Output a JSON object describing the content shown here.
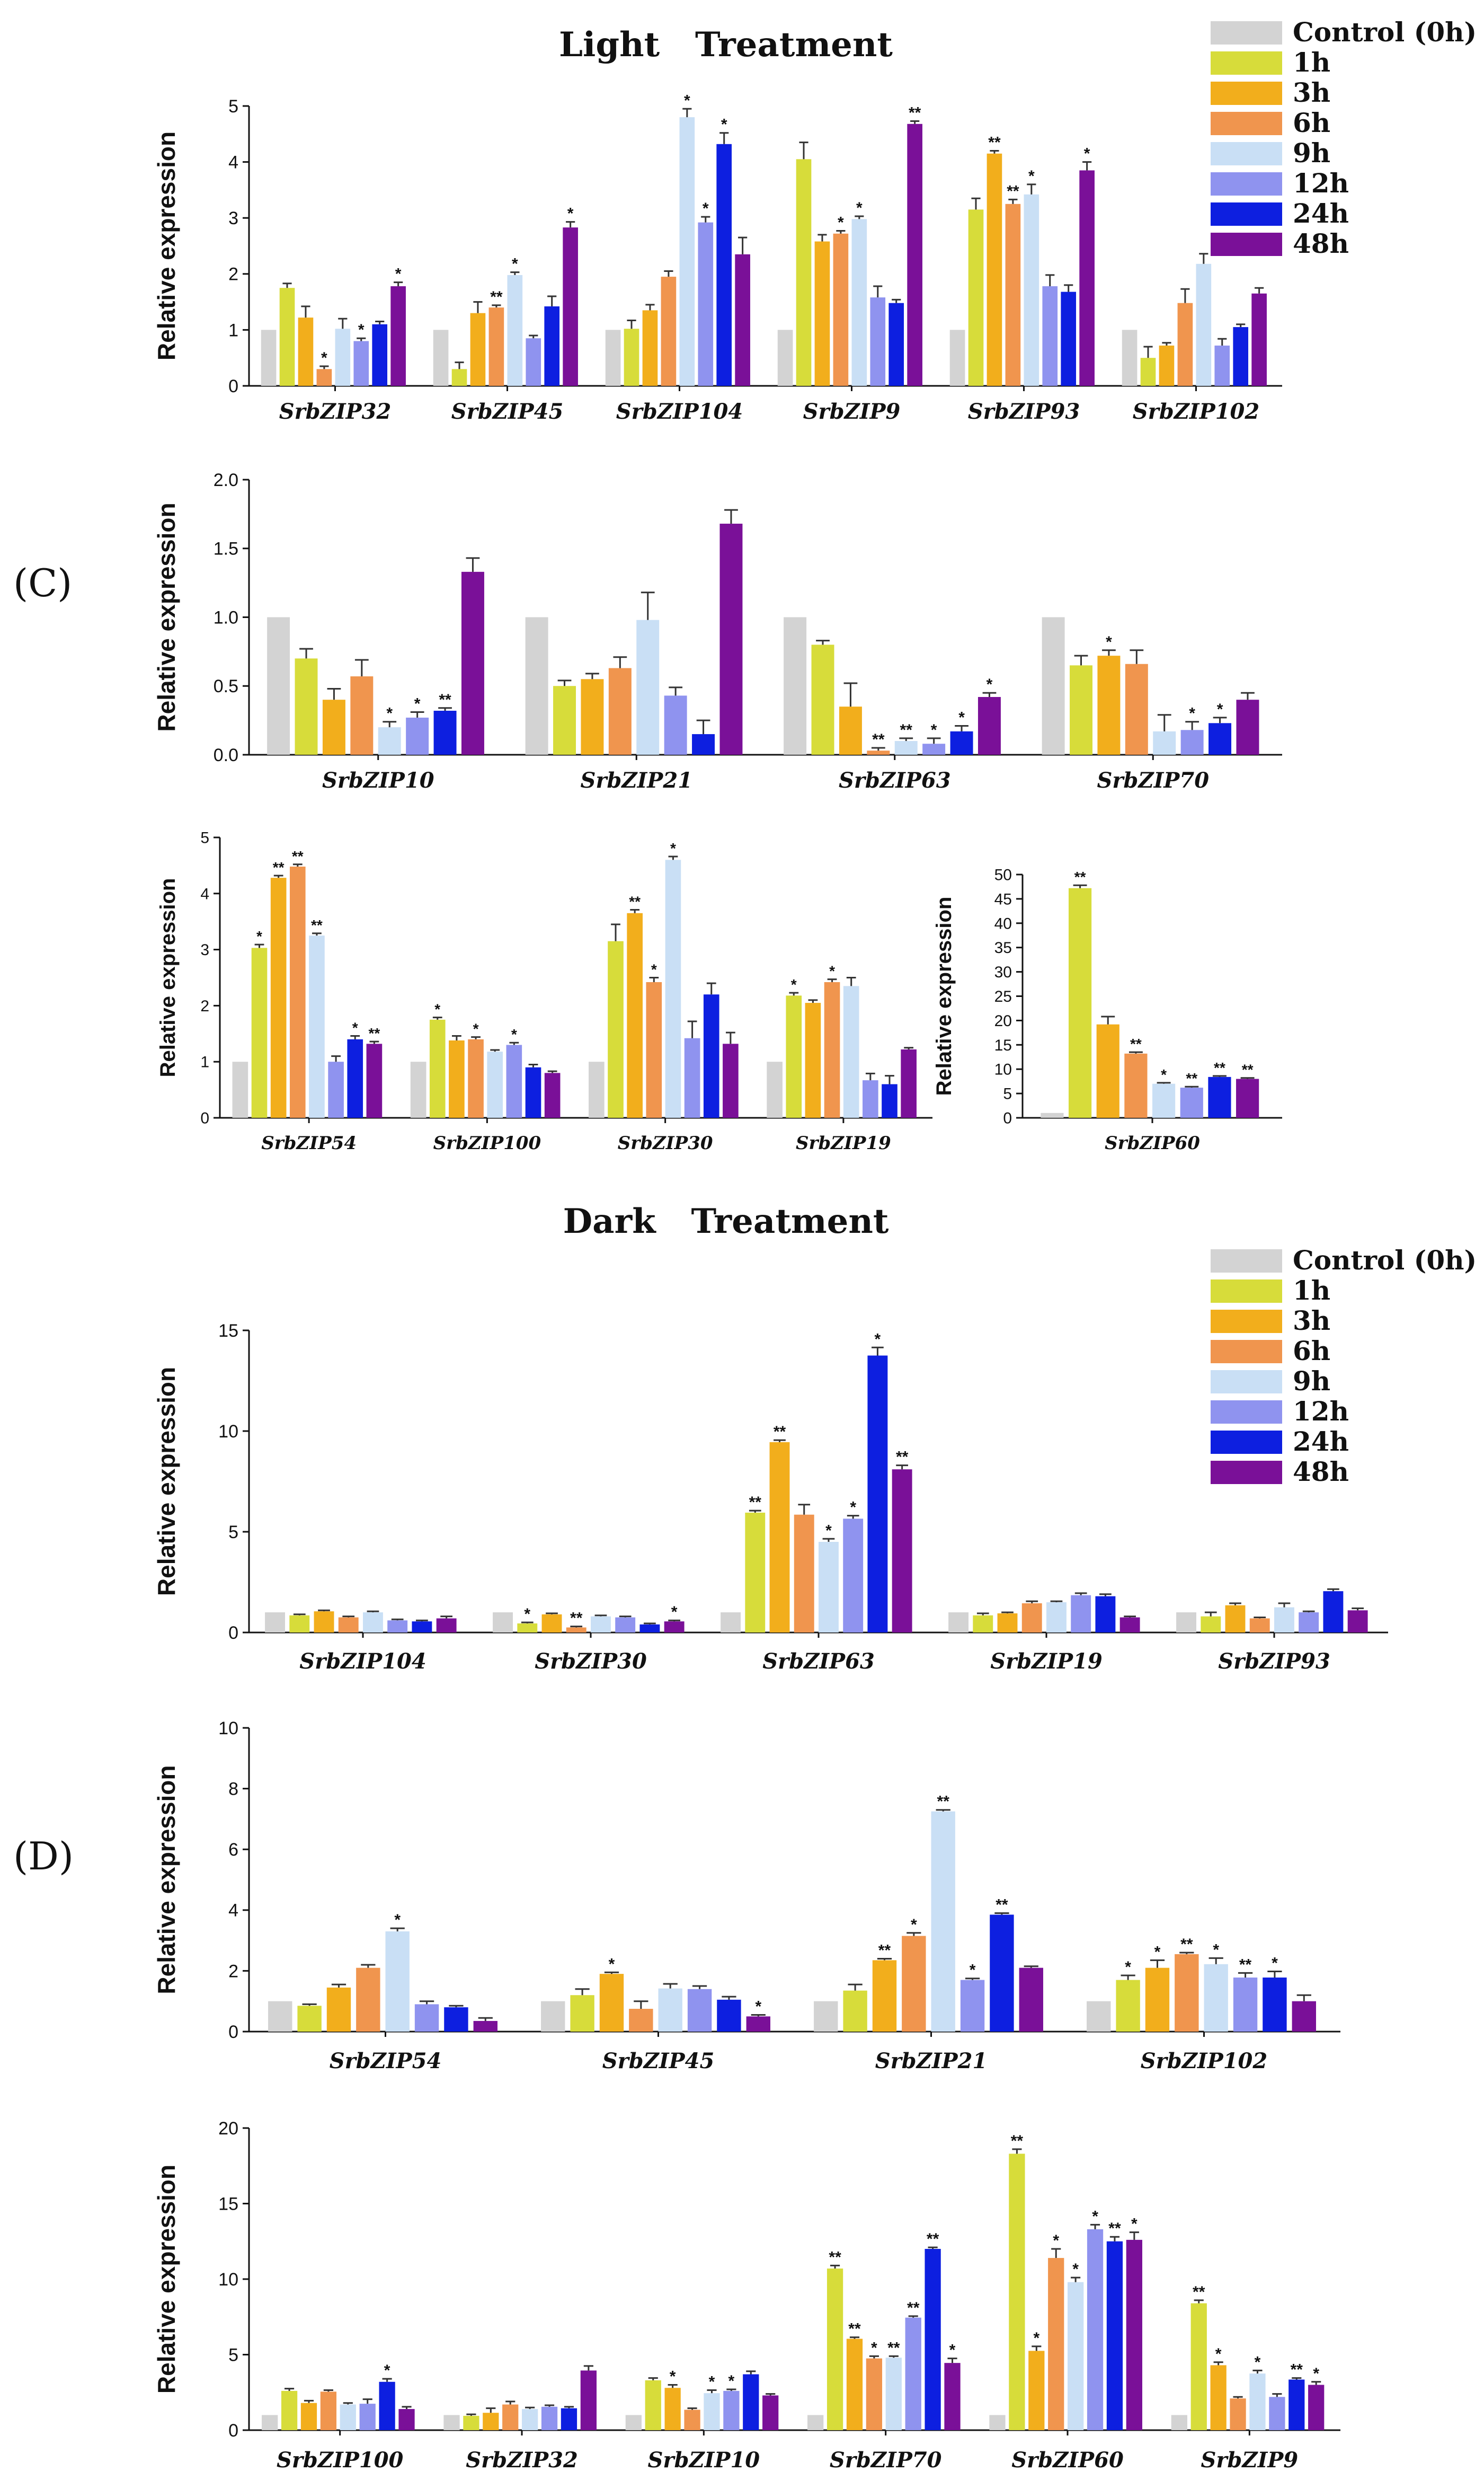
{
  "light_title": "Light   Treatment",
  "dark_title": "Dark   Treatment",
  "panel_labels": [
    "(C)",
    "(D)"
  ],
  "legend": {
    "series": [
      {
        "name": "Control (0h)",
        "color": "#d3d3d3"
      },
      {
        "name": "1h",
        "color": "#d7dc3a"
      },
      {
        "name": "3h",
        "color": "#f2ae1c"
      },
      {
        "name": "6h",
        "color": "#f0954e"
      },
      {
        "name": "9h",
        "color": "#c9dff5"
      },
      {
        "name": "12h",
        "color": "#8f93ef"
      },
      {
        "name": "24h",
        "color": "#0d1fe0"
      },
      {
        "name": "48h",
        "color": "#7a1098"
      }
    ]
  },
  "chart_data": [
    {
      "id": "light1",
      "type": "bar",
      "treatment": "Light",
      "ylabel": "Relative expression",
      "ylim": [
        0,
        5
      ],
      "yticks": [
        0,
        1,
        2,
        3,
        4,
        5
      ],
      "categories": [
        "SrbZIP32",
        "SrbZIP45",
        "SrbZIP104",
        "SrbZIP9",
        "SrbZIP93",
        "SrbZIP102"
      ],
      "series_names": [
        "Control (0h)",
        "1h",
        "3h",
        "6h",
        "9h",
        "12h",
        "24h",
        "48h"
      ],
      "values": [
        [
          1,
          1.75,
          1.22,
          0.3,
          1.02,
          0.8,
          1.1,
          1.78
        ],
        [
          1,
          0.3,
          1.3,
          1.4,
          1.98,
          0.85,
          1.42,
          2.83
        ],
        [
          1,
          1.02,
          1.35,
          1.95,
          4.8,
          2.92,
          4.32,
          2.35
        ],
        [
          1,
          4.05,
          2.58,
          2.72,
          2.98,
          1.58,
          1.48,
          4.68
        ],
        [
          1,
          3.15,
          4.15,
          3.25,
          3.42,
          1.78,
          1.68,
          3.85
        ],
        [
          1,
          0.5,
          0.72,
          1.48,
          2.18,
          0.72,
          1.05,
          1.65
        ]
      ],
      "errors": [
        [
          0,
          0.08,
          0.2,
          0.05,
          0.18,
          0.05,
          0.05,
          0.07
        ],
        [
          0,
          0.12,
          0.2,
          0.04,
          0.05,
          0.05,
          0.18,
          0.1
        ],
        [
          0,
          0.15,
          0.1,
          0.1,
          0.15,
          0.1,
          0.2,
          0.3
        ],
        [
          0,
          0.3,
          0.12,
          0.05,
          0.05,
          0.2,
          0.06,
          0.05
        ],
        [
          0,
          0.2,
          0.05,
          0.08,
          0.18,
          0.2,
          0.12,
          0.15
        ],
        [
          0,
          0.2,
          0.05,
          0.25,
          0.18,
          0.12,
          0.05,
          0.1
        ]
      ],
      "significance": [
        [
          "",
          "",
          "",
          "*",
          "",
          "*",
          "",
          "*"
        ],
        [
          "",
          "",
          "",
          "**",
          "*",
          "",
          "",
          "*"
        ],
        [
          "",
          "",
          "",
          "",
          "*",
          "*",
          "*",
          ""
        ],
        [
          "",
          "",
          "",
          "*",
          "*",
          "",
          "",
          "**"
        ],
        [
          "",
          "",
          "**",
          "**",
          "*",
          "",
          "",
          "*"
        ],
        [
          "",
          "",
          "",
          "",
          "",
          "",
          "",
          ""
        ]
      ]
    },
    {
      "id": "light2",
      "type": "bar",
      "treatment": "Light",
      "ylabel": "Relative expression",
      "ylim": [
        0,
        2
      ],
      "yticks": [
        "0.0",
        "0.5",
        "1.0",
        "1.5",
        "2.0"
      ],
      "categories": [
        "SrbZIP10",
        "SrbZIP21",
        "SrbZIP63",
        "SrbZIP70"
      ],
      "series_names": [
        "Control (0h)",
        "1h",
        "3h",
        "6h",
        "9h",
        "12h",
        "24h",
        "48h"
      ],
      "values": [
        [
          1,
          0.7,
          0.4,
          0.57,
          0.2,
          0.27,
          0.32,
          1.33
        ],
        [
          1,
          0.5,
          0.55,
          0.63,
          0.98,
          0.43,
          0.15,
          1.68
        ],
        [
          1,
          0.8,
          0.35,
          0.03,
          0.1,
          0.08,
          0.17,
          0.42
        ],
        [
          1,
          0.65,
          0.72,
          0.66,
          0.17,
          0.18,
          0.23,
          0.4
        ]
      ],
      "errors": [
        [
          0,
          0.07,
          0.08,
          0.12,
          0.04,
          0.04,
          0.02,
          0.1
        ],
        [
          0,
          0.04,
          0.04,
          0.08,
          0.2,
          0.06,
          0.1,
          0.1
        ],
        [
          0,
          0.03,
          0.17,
          0.02,
          0.02,
          0.04,
          0.04,
          0.03
        ],
        [
          0,
          0.07,
          0.04,
          0.1,
          0.12,
          0.06,
          0.04,
          0.05
        ]
      ],
      "significance": [
        [
          "",
          "",
          "",
          "",
          "*",
          "*",
          "**",
          ""
        ],
        [
          "",
          "",
          "",
          "",
          "",
          "",
          "",
          ""
        ],
        [
          "",
          "",
          "",
          "**",
          "**",
          "*",
          "*",
          "*"
        ],
        [
          "",
          "",
          "*",
          "",
          "",
          "*",
          "*",
          ""
        ]
      ]
    },
    {
      "id": "light3",
      "type": "bar",
      "treatment": "Light",
      "ylabel": "Relative expression",
      "ylim": [
        0,
        5
      ],
      "yticks": [
        0,
        1,
        2,
        3,
        4,
        5
      ],
      "categories": [
        "SrbZIP54",
        "SrbZIP100",
        "SrbZIP30",
        "SrbZIP19"
      ],
      "series_names": [
        "Control (0h)",
        "1h",
        "3h",
        "6h",
        "9h",
        "12h",
        "24h",
        "48h"
      ],
      "values": [
        [
          1,
          3.03,
          4.28,
          4.48,
          3.25,
          1,
          1.4,
          1.32
        ],
        [
          1,
          1.75,
          1.38,
          1.4,
          1.18,
          1.3,
          0.9,
          0.8
        ],
        [
          1,
          3.15,
          3.65,
          2.42,
          4.6,
          1.42,
          2.2,
          1.32
        ],
        [
          1,
          2.18,
          2.05,
          2.42,
          2.35,
          0.67,
          0.6,
          1.22
        ]
      ],
      "errors": [
        [
          0,
          0.06,
          0.04,
          0.04,
          0.04,
          0.1,
          0.06,
          0.04
        ],
        [
          0,
          0.04,
          0.08,
          0.04,
          0.03,
          0.04,
          0.05,
          0.03
        ],
        [
          0,
          0.3,
          0.06,
          0.08,
          0.06,
          0.3,
          0.2,
          0.2
        ],
        [
          0,
          0.05,
          0.05,
          0.05,
          0.15,
          0.12,
          0.15,
          0.03
        ]
      ],
      "significance": [
        [
          "",
          "*",
          "**",
          "**",
          "**",
          "",
          "*",
          "**"
        ],
        [
          "",
          "*",
          "",
          "*",
          "",
          "*",
          "",
          ""
        ],
        [
          "",
          "",
          "**",
          "*",
          "*",
          "",
          "",
          ""
        ],
        [
          "",
          "*",
          "",
          "*",
          "",
          "",
          "",
          ""
        ]
      ]
    },
    {
      "id": "light4",
      "type": "bar",
      "treatment": "Light",
      "ylabel": "Relative expression",
      "ylim": [
        0,
        50
      ],
      "yticks": [
        0,
        5,
        10,
        15,
        20,
        25,
        30,
        35,
        40,
        45,
        50
      ],
      "categories": [
        "SrbZIP60"
      ],
      "series_names": [
        "Control (0h)",
        "1h",
        "3h",
        "6h",
        "9h",
        "12h",
        "24h",
        "48h"
      ],
      "values": [
        [
          1,
          47.2,
          19.2,
          13.2,
          7,
          6.2,
          8.4,
          8
        ]
      ],
      "errors": [
        [
          0,
          0.6,
          1.6,
          0.3,
          0.2,
          0.2,
          0.2,
          0.2
        ]
      ],
      "significance": [
        [
          "",
          "**",
          "",
          "**",
          "*",
          "**",
          "**",
          "**"
        ]
      ]
    },
    {
      "id": "dark1",
      "type": "bar",
      "treatment": "Dark",
      "ylabel": "Relative expression",
      "ylim": [
        0,
        15
      ],
      "yticks": [
        0,
        5,
        10,
        15
      ],
      "categories": [
        "SrbZIP104",
        "SrbZIP30",
        "SrbZIP63",
        "SrbZIP19",
        "SrbZIP93"
      ],
      "series_names": [
        "Control (0h)",
        "1h",
        "3h",
        "6h",
        "9h",
        "12h",
        "24h",
        "48h"
      ],
      "values": [
        [
          1,
          0.85,
          1.05,
          0.75,
          1,
          0.6,
          0.55,
          0.7
        ],
        [
          1,
          0.45,
          0.9,
          0.25,
          0.8,
          0.75,
          0.4,
          0.55
        ],
        [
          1,
          5.95,
          9.45,
          5.85,
          4.5,
          5.65,
          13.75,
          8.1
        ],
        [
          1,
          0.85,
          0.95,
          1.45,
          1.5,
          1.85,
          1.8,
          0.75
        ],
        [
          1,
          0.8,
          1.35,
          0.7,
          1.25,
          1,
          2.05,
          1.1
        ]
      ],
      "errors": [
        [
          0,
          0.05,
          0.05,
          0.05,
          0.05,
          0.05,
          0.05,
          0.1
        ],
        [
          0,
          0.05,
          0.05,
          0.05,
          0.05,
          0.05,
          0.05,
          0.05
        ],
        [
          0,
          0.1,
          0.1,
          0.5,
          0.15,
          0.15,
          0.4,
          0.2
        ],
        [
          0,
          0.1,
          0.05,
          0.1,
          0.05,
          0.1,
          0.1,
          0.05
        ],
        [
          0,
          0.2,
          0.1,
          0.05,
          0.2,
          0.05,
          0.1,
          0.1
        ]
      ],
      "significance": [
        [
          "",
          "",
          "",
          "",
          "",
          "",
          "",
          ""
        ],
        [
          "",
          "*",
          "",
          "**",
          "",
          "",
          "",
          "*"
        ],
        [
          "",
          "**",
          "**",
          "",
          "*",
          "*",
          "*",
          "**"
        ],
        [
          "",
          "",
          "",
          "",
          "",
          "",
          "",
          ""
        ],
        [
          "",
          "",
          "",
          "",
          "",
          "",
          "",
          ""
        ]
      ]
    },
    {
      "id": "dark2",
      "type": "bar",
      "treatment": "Dark",
      "ylabel": "Relative expression",
      "ylim": [
        0,
        10
      ],
      "yticks": [
        0,
        2,
        4,
        6,
        8,
        10
      ],
      "categories": [
        "SrbZIP54",
        "SrbZIP45",
        "SrbZIP21",
        "SrbZIP102"
      ],
      "series_names": [
        "Control (0h)",
        "1h",
        "3h",
        "6h",
        "9h",
        "12h",
        "24h",
        "48h"
      ],
      "values": [
        [
          1,
          0.85,
          1.45,
          2.1,
          3.3,
          0.9,
          0.8,
          0.35
        ],
        [
          1,
          1.2,
          1.9,
          0.75,
          1.42,
          1.4,
          1.05,
          0.5
        ],
        [
          1,
          1.35,
          2.35,
          3.15,
          7.25,
          1.7,
          3.85,
          2.1
        ],
        [
          1,
          1.7,
          2.1,
          2.55,
          2.22,
          1.78,
          1.78,
          1
        ]
      ],
      "errors": [
        [
          0,
          0.05,
          0.1,
          0.1,
          0.1,
          0.1,
          0.05,
          0.1
        ],
        [
          0,
          0.2,
          0.05,
          0.25,
          0.15,
          0.1,
          0.1,
          0.05
        ],
        [
          0,
          0.2,
          0.05,
          0.1,
          0.05,
          0.05,
          0.05,
          0.05
        ],
        [
          0,
          0.15,
          0.25,
          0.05,
          0.2,
          0.15,
          0.2,
          0.2
        ]
      ],
      "significance": [
        [
          "",
          "",
          "",
          "",
          "*",
          "",
          "",
          ""
        ],
        [
          "",
          "",
          "*",
          "",
          "",
          "",
          "",
          "*"
        ],
        [
          "",
          "",
          "**",
          "*",
          "**",
          "*",
          "**",
          ""
        ],
        [
          "",
          "*",
          "*",
          "**",
          "*",
          "**",
          "*",
          ""
        ]
      ]
    },
    {
      "id": "dark3",
      "type": "bar",
      "treatment": "Dark",
      "ylabel": "Relative expression",
      "ylim": [
        0,
        20
      ],
      "yticks": [
        0,
        5,
        10,
        15,
        20
      ],
      "categories": [
        "SrbZIP100",
        "SrbZIP32",
        "SrbZIP10",
        "SrbZIP70",
        "SrbZIP60",
        "SrbZIP9"
      ],
      "series_names": [
        "Control (0h)",
        "1h",
        "3h",
        "6h",
        "9h",
        "12h",
        "24h",
        "48h"
      ],
      "values": [
        [
          1,
          2.6,
          1.8,
          2.55,
          1.7,
          1.75,
          3.2,
          1.4
        ],
        [
          1,
          0.95,
          1.15,
          1.7,
          1.4,
          1.55,
          1.45,
          3.95
        ],
        [
          1,
          3.3,
          2.8,
          1.35,
          2.45,
          2.6,
          3.7,
          2.3
        ],
        [
          1,
          10.7,
          6.05,
          4.75,
          4.8,
          7.45,
          12,
          4.45
        ],
        [
          1,
          18.3,
          5.25,
          11.4,
          9.8,
          13.3,
          12.5,
          12.6
        ],
        [
          1,
          8.4,
          4.3,
          2.1,
          3.75,
          2.2,
          3.35,
          3
        ]
      ],
      "errors": [
        [
          0,
          0.15,
          0.15,
          0.1,
          0.1,
          0.3,
          0.2,
          0.15
        ],
        [
          0,
          0.1,
          0.3,
          0.2,
          0.1,
          0.1,
          0.1,
          0.3
        ],
        [
          0,
          0.15,
          0.2,
          0.1,
          0.2,
          0.1,
          0.2,
          0.1
        ],
        [
          0,
          0.2,
          0.1,
          0.15,
          0.1,
          0.1,
          0.1,
          0.3
        ],
        [
          0,
          0.3,
          0.3,
          0.6,
          0.3,
          0.3,
          0.3,
          0.5
        ],
        [
          0,
          0.2,
          0.2,
          0.1,
          0.2,
          0.2,
          0.1,
          0.2
        ]
      ],
      "significance": [
        [
          "",
          "",
          "",
          "",
          "",
          "",
          "*",
          ""
        ],
        [
          "",
          "",
          "",
          "",
          "",
          "",
          "",
          ""
        ],
        [
          "",
          "",
          "*",
          "",
          "*",
          "*",
          "",
          ""
        ],
        [
          "",
          "**",
          "**",
          "*",
          "**",
          "**",
          "**",
          "*"
        ],
        [
          "",
          "**",
          "*",
          "*",
          "*",
          "*",
          "**",
          "*"
        ],
        [
          "",
          "**",
          "*",
          "",
          "*",
          "",
          "**",
          "*"
        ]
      ]
    }
  ]
}
